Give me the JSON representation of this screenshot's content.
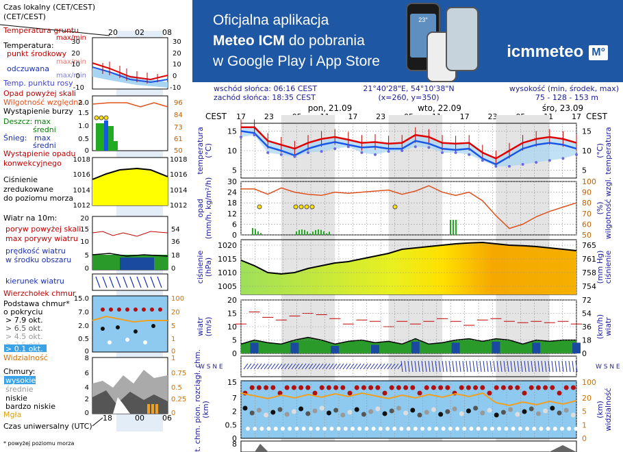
{
  "legend": {
    "time_local": "Czas lokalny\n(CET/CEST)",
    "time_ticks": [
      "20",
      "02",
      "08"
    ],
    "time_utc_ticks": [
      "18",
      "00",
      "06"
    ],
    "soil_temp": "Temperatura gruntu",
    "soil_temp_sub": "max/min",
    "temperature": "Temperatura:",
    "midpoint": "punkt środkowy",
    "max_min": "max/min",
    "feels_like": "odczuwana",
    "feels_like_sub": "max/min",
    "dew_point": "Temp. punktu rosy",
    "temp_scale": [
      "30",
      "20",
      "10",
      "0",
      "-10"
    ],
    "precip_above": "Opad powyżej skali",
    "humidity": "Wilgotność względna",
    "storm": "Wystąpienie burzy",
    "rain": "Deszcz:",
    "max": "max",
    "mean": "średni",
    "snow": "Śnieg:",
    "rain_scale": [
      "2.0",
      "1.5",
      "1.0",
      "0.5",
      "0"
    ],
    "humidity_scale": [
      "96",
      "84",
      "73",
      "61",
      "50"
    ],
    "precip_occurrence": "Wystąpienie opadu",
    "convective": "konwekcyjnego",
    "pressure_label": "Ciśnienie\nzredukowane\ndo poziomu morza",
    "pressure_scale": [
      "1018",
      "1016",
      "1014",
      "1012"
    ],
    "wind": "Wiatr na 10m:",
    "gusts_above": "poryw powyżej skali",
    "max_gusts": "max porywy wiatru",
    "wind_speed_area": "prędkość wiatru\nw środku obszaru",
    "wind_scale_ms": [
      "20",
      "15",
      "10",
      "5",
      "0"
    ],
    "wind_scale_kmh": [
      "72",
      "54",
      "36",
      "18",
      "0"
    ],
    "wind_dir": "kierunek wiatru",
    "cloud_top": "Wierzchołek chmur",
    "cloud_base": "Podstawa chmur*\no pokryciu",
    "okt": [
      "> 7.9 okt.",
      "> 6.5 okt.",
      "> 4.5 okt.",
      "> 2.5 okt.",
      "> 0.1 okt."
    ],
    "cloud_scale": [
      "15.0",
      "7.0",
      "2.0",
      "0.5",
      "0"
    ],
    "vis_scale": [
      "100",
      "20",
      "5",
      "1",
      "0"
    ],
    "visibility": "Widzialność",
    "clouds": "Chmury:",
    "high": "wysokie",
    "mid": "średnie",
    "low": "niskie",
    "very_low": "bardzo niskie",
    "fog": "Mgła",
    "cloud_frac_left": [
      "8",
      "6",
      "4",
      "2",
      "0"
    ],
    "cloud_frac_right": [
      "1",
      "0.75",
      "0.5",
      "0.25",
      "0"
    ],
    "utc": "Czas uniwersalny (UTC)",
    "footnote": "* powyżej poziomu morza"
  },
  "banner": {
    "line1": "Oficjalna aplikacja",
    "line2a": "Meteo ICM",
    "line2b": " do pobrania",
    "line3": "w Google Play i App Store",
    "logo": "icmmeteo",
    "logo_mark": "M°",
    "phone_temp": "23°"
  },
  "info": {
    "sunrise": "wschód słońca: 06:16 CEST",
    "sunset": "zachód słońca: 18:35 CEST",
    "coords": "21°40'28\"E, 54°10'38\"N",
    "grid": "(x=260,  y=350)",
    "elevation_label": "wysokość (min, środek, max)",
    "elevation": "75 - 128 - 153 m"
  },
  "axis": {
    "tz": "CEST",
    "days": [
      "pon, 21.09",
      "wto, 22.09",
      "śro, 23.09"
    ],
    "hours": [
      "17",
      "23",
      "05",
      "11",
      "17",
      "23",
      "05",
      "11",
      "17",
      "23",
      "05",
      "11",
      "17"
    ],
    "temp_label": "temperatura",
    "temp_unit": "(°C)",
    "precip_label": "opad",
    "precip_unit": "(mm/h, kg/m²/h)",
    "humidity_label": "wilgotność wzgl.",
    "humidity_unit": "(%)",
    "pressure_label": "ciśnienie",
    "pressure_unit": "(hPa)",
    "pressure_unit_r": "(mm Hg)",
    "wind_label": "wiatr",
    "wind_unit": "(m/s)",
    "wind_unit_r": "(km/h)",
    "cloud_label": "podst. chm. pion. rozciągł. chm.",
    "cloud_unit": "(km)",
    "vis_label": "widzialność",
    "vis_unit": "(km)",
    "compass": "W S N E"
  },
  "chart_data": {
    "type": "line",
    "x_hours": [
      17,
      23,
      5,
      11,
      17,
      23,
      5,
      11,
      17,
      23,
      5,
      11,
      17
    ],
    "panels": {
      "temperature": {
        "yticks": [
          5,
          10,
          15
        ],
        "ylim": [
          3,
          17
        ],
        "right_ticks": [
          5,
          10,
          15
        ],
        "mean": [
          15.0,
          14.5,
          11.0,
          10.0,
          8.8,
          10.5,
          11.5,
          12.2,
          11.5,
          10.8,
          11.0,
          10.5,
          10.5,
          12.5,
          11.8,
          10.5,
          10.2,
          10.5,
          8.0,
          6.5,
          8.5,
          10.5,
          11.5,
          12.0,
          11.5,
          10.5
        ],
        "max": [
          16.0,
          16.0,
          12.5,
          11.5,
          10.5,
          12.0,
          13.0,
          13.5,
          12.8,
          12.0,
          12.2,
          11.8,
          12.0,
          14.0,
          13.5,
          12.0,
          11.8,
          12.0,
          9.5,
          8.0,
          10.0,
          12.0,
          13.0,
          13.5,
          13.0,
          12.0
        ],
        "dew": [
          13.5,
          14.0,
          9.5,
          9.0,
          8.5,
          9.5,
          9.8,
          10.5,
          11.0,
          9.5,
          9.0,
          9.8,
          10.0,
          11.0,
          10.8,
          9.5,
          9.5,
          9.0,
          7.5,
          6.0,
          6.0,
          6.5,
          7.0,
          7.5,
          8.0,
          9.0
        ]
      },
      "precipitation": {
        "yticks": [
          0,
          6,
          12,
          18,
          24,
          30
        ],
        "ylim": [
          0,
          30
        ],
        "humidity_ticks": [
          50,
          60,
          70,
          80,
          90,
          100
        ],
        "humidity": [
          93,
          93,
          88,
          94,
          90,
          88,
          87,
          90,
          89,
          90,
          91,
          92,
          88,
          91,
          96,
          90,
          87,
          90,
          82,
          68,
          56,
          60,
          67,
          72,
          76,
          80
        ]
      },
      "pressure": {
        "yticks": [
          1005,
          1010,
          1015,
          1020
        ],
        "ylim": [
          1002,
          1022
        ],
        "right_ticks": [
          754,
          758,
          761,
          765
        ],
        "values": [
          1014.5,
          1012.5,
          1010.0,
          1009.5,
          1010.0,
          1011.5,
          1012.5,
          1013.5,
          1014.0,
          1015.0,
          1016.0,
          1017.0,
          1018.5,
          1019.0,
          1019.5,
          1020.0,
          1020.5,
          1020.8,
          1021.0,
          1020.5,
          1020.0,
          1019.8,
          1019.5,
          1019.0,
          1018.5,
          1018.0
        ]
      },
      "wind": {
        "yticks": [
          0,
          5,
          10,
          15,
          20
        ],
        "ylim": [
          0,
          20
        ],
        "right_ticks": [
          0,
          18,
          36,
          54,
          72
        ],
        "speed": [
          3.5,
          5.0,
          4.0,
          3.5,
          5.0,
          6.0,
          5.0,
          3.5,
          4.5,
          5.0,
          4.0,
          4.5,
          3.5,
          5.5,
          3.5,
          4.0,
          5.0,
          5.5,
          4.5,
          5.5,
          5.0,
          3.5,
          5.0,
          4.5,
          5.0,
          5.0
        ],
        "gusts": [
          11.0,
          15.5,
          13.5,
          12.5,
          14.0,
          15.0,
          14.5,
          13.0,
          11.0,
          12.5,
          12.0,
          10.0,
          12.0,
          11.0,
          12.0,
          13.0,
          12.0,
          10.5,
          12.5,
          13.0,
          12.0,
          11.5,
          12.0,
          11.5,
          12.0,
          11.0
        ]
      },
      "clouds": {
        "yticks": [
          0,
          0.5,
          2.0,
          7.0,
          15.0
        ],
        "right_ticks": [
          0,
          1,
          5,
          20,
          100
        ]
      },
      "visibility": {
        "yticks": [
          8
        ]
      }
    }
  },
  "colors": {
    "banner": "#1e57a3",
    "temperature_max": "#e00000",
    "temperature_mean": "#1a56e6",
    "humidity": "#e0501c",
    "pressure_low": "#8ee03a",
    "pressure_high": "#f5a800",
    "wind_fill": "#2a9a2a",
    "cloud_bg": "#8ec9ef"
  }
}
